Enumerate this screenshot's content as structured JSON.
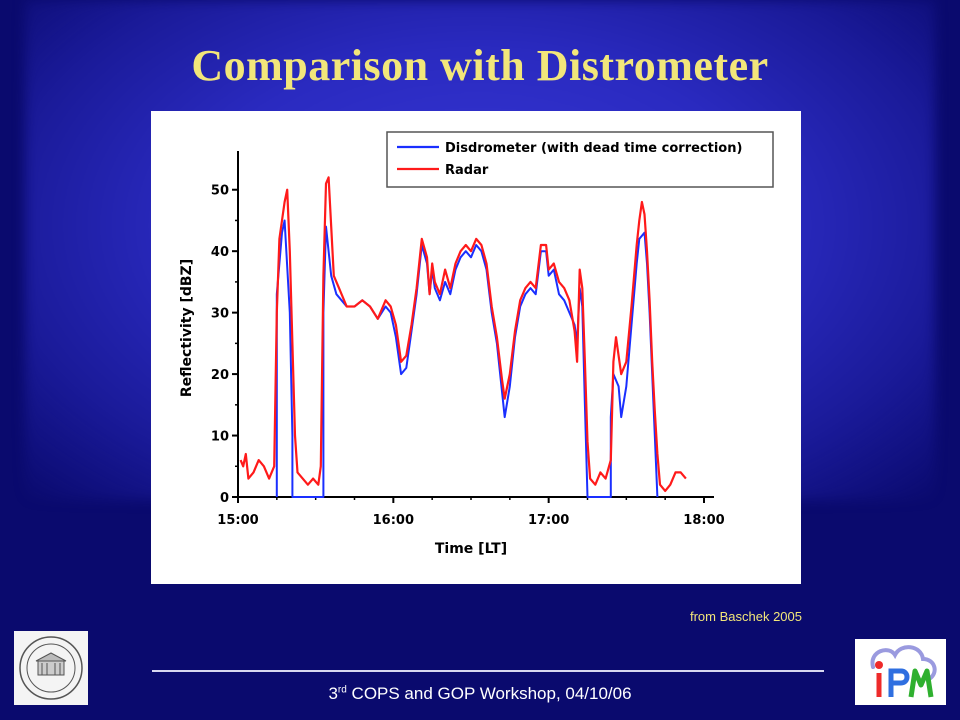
{
  "slide": {
    "title": "Comparison with Distrometer",
    "source": "from Baschek 2005",
    "footer_sup": "rd",
    "footer_main": "3",
    "footer_rest": " COPS and GOP Workshop, 04/10/06"
  },
  "logos": {
    "left": "university-hohenheim-seal",
    "right": "ipm-logo"
  },
  "colors": {
    "background": "#0a0a6e",
    "title": "#f2e67a",
    "disdrometer": "#1a2fff",
    "radar": "#ff1a1a"
  },
  "chart_data": {
    "type": "line",
    "title": "",
    "xlabel": "Time [LT]",
    "ylabel": "Reflectivity [dBZ]",
    "xlim": [
      "15:00",
      "18:00"
    ],
    "ylim": [
      0,
      55
    ],
    "xticks": [
      "15:00",
      "16:00",
      "17:00",
      "18:00"
    ],
    "yticks": [
      0,
      10,
      20,
      30,
      40,
      50
    ],
    "grid": false,
    "legend_position": "top-right",
    "series": [
      {
        "name": "Disdrometer (with dead time correction)",
        "color": "#1a2fff",
        "points": [
          [
            "15:15",
            0
          ],
          [
            "15:15",
            33
          ],
          [
            "15:17",
            43
          ],
          [
            "15:18",
            45
          ],
          [
            "15:20",
            30
          ],
          [
            "15:21",
            10
          ],
          [
            "15:21",
            0
          ],
          [
            "15:33",
            0
          ],
          [
            "15:33",
            30
          ],
          [
            "15:34",
            44
          ],
          [
            "15:36",
            36
          ],
          [
            "15:38",
            33
          ],
          [
            "15:42",
            31
          ],
          [
            "15:45",
            31
          ],
          [
            "15:48",
            32
          ],
          [
            "15:51",
            31
          ],
          [
            "15:54",
            29
          ],
          [
            "15:57",
            31
          ],
          [
            "15:59",
            30
          ],
          [
            "16:01",
            26
          ],
          [
            "16:03",
            20
          ],
          [
            "16:05",
            21
          ],
          [
            "16:07",
            27
          ],
          [
            "16:09",
            33
          ],
          [
            "16:11",
            41
          ],
          [
            "16:13",
            38
          ],
          [
            "16:14",
            33
          ],
          [
            "16:15",
            37
          ],
          [
            "16:16",
            34
          ],
          [
            "16:18",
            32
          ],
          [
            "16:20",
            35
          ],
          [
            "16:22",
            33
          ],
          [
            "16:24",
            37
          ],
          [
            "16:26",
            39
          ],
          [
            "16:28",
            40
          ],
          [
            "16:30",
            39
          ],
          [
            "16:32",
            41
          ],
          [
            "16:34",
            40
          ],
          [
            "16:36",
            37
          ],
          [
            "16:38",
            30
          ],
          [
            "16:40",
            25
          ],
          [
            "16:42",
            17
          ],
          [
            "16:43",
            13
          ],
          [
            "16:45",
            18
          ],
          [
            "16:47",
            26
          ],
          [
            "16:49",
            31
          ],
          [
            "16:51",
            33
          ],
          [
            "16:53",
            34
          ],
          [
            "16:55",
            33
          ],
          [
            "16:57",
            40
          ],
          [
            "16:59",
            40
          ],
          [
            "17:00",
            36
          ],
          [
            "17:02",
            37
          ],
          [
            "17:04",
            33
          ],
          [
            "17:06",
            32
          ],
          [
            "17:08",
            30
          ],
          [
            "17:10",
            28
          ],
          [
            "17:11",
            25
          ],
          [
            "17:12",
            34
          ],
          [
            "17:13",
            31
          ],
          [
            "17:14",
            15
          ],
          [
            "17:15",
            0
          ],
          [
            "17:24",
            0
          ],
          [
            "17:24",
            13
          ],
          [
            "17:25",
            20
          ],
          [
            "17:27",
            18
          ],
          [
            "17:28",
            13
          ],
          [
            "17:30",
            18
          ],
          [
            "17:32",
            28
          ],
          [
            "17:34",
            38
          ],
          [
            "17:35",
            42
          ],
          [
            "17:37",
            43
          ],
          [
            "17:38",
            38
          ],
          [
            "17:39",
            30
          ],
          [
            "17:40",
            20
          ],
          [
            "17:41",
            10
          ],
          [
            "17:42",
            0
          ]
        ]
      },
      {
        "name": "Radar",
        "color": "#ff1a1a",
        "points": [
          [
            "15:01",
            6
          ],
          [
            "15:02",
            5
          ],
          [
            "15:03",
            7
          ],
          [
            "15:04",
            3
          ],
          [
            "15:06",
            4
          ],
          [
            "15:08",
            6
          ],
          [
            "15:10",
            5
          ],
          [
            "15:12",
            3
          ],
          [
            "15:14",
            5
          ],
          [
            "15:15",
            30
          ],
          [
            "15:16",
            42
          ],
          [
            "15:18",
            48
          ],
          [
            "15:19",
            50
          ],
          [
            "15:20",
            40
          ],
          [
            "15:21",
            25
          ],
          [
            "15:22",
            10
          ],
          [
            "15:23",
            4
          ],
          [
            "15:25",
            3
          ],
          [
            "15:27",
            2
          ],
          [
            "15:29",
            3
          ],
          [
            "15:31",
            2
          ],
          [
            "15:32",
            5
          ],
          [
            "15:33",
            36
          ],
          [
            "15:34",
            51
          ],
          [
            "15:35",
            52
          ],
          [
            "15:36",
            44
          ],
          [
            "15:37",
            36
          ],
          [
            "15:39",
            34
          ],
          [
            "15:42",
            31
          ],
          [
            "15:45",
            31
          ],
          [
            "15:48",
            32
          ],
          [
            "15:51",
            31
          ],
          [
            "15:54",
            29
          ],
          [
            "15:57",
            32
          ],
          [
            "15:59",
            31
          ],
          [
            "16:01",
            28
          ],
          [
            "16:03",
            22
          ],
          [
            "16:05",
            23
          ],
          [
            "16:07",
            28
          ],
          [
            "16:09",
            34
          ],
          [
            "16:11",
            42
          ],
          [
            "16:13",
            39
          ],
          [
            "16:14",
            33
          ],
          [
            "16:15",
            38
          ],
          [
            "16:16",
            35
          ],
          [
            "16:18",
            33
          ],
          [
            "16:20",
            37
          ],
          [
            "16:22",
            34
          ],
          [
            "16:24",
            38
          ],
          [
            "16:26",
            40
          ],
          [
            "16:28",
            41
          ],
          [
            "16:30",
            40
          ],
          [
            "16:32",
            42
          ],
          [
            "16:34",
            41
          ],
          [
            "16:36",
            38
          ],
          [
            "16:38",
            31
          ],
          [
            "16:40",
            26
          ],
          [
            "16:42",
            19
          ],
          [
            "16:43",
            16
          ],
          [
            "16:45",
            20
          ],
          [
            "16:47",
            27
          ],
          [
            "16:49",
            32
          ],
          [
            "16:51",
            34
          ],
          [
            "16:53",
            35
          ],
          [
            "16:55",
            34
          ],
          [
            "16:57",
            41
          ],
          [
            "16:59",
            41
          ],
          [
            "17:00",
            37
          ],
          [
            "17:02",
            38
          ],
          [
            "17:04",
            35
          ],
          [
            "17:06",
            34
          ],
          [
            "17:08",
            32
          ],
          [
            "17:10",
            27
          ],
          [
            "17:11",
            22
          ],
          [
            "17:12",
            37
          ],
          [
            "17:13",
            34
          ],
          [
            "17:14",
            22
          ],
          [
            "17:15",
            9
          ],
          [
            "17:16",
            3
          ],
          [
            "17:18",
            2
          ],
          [
            "17:20",
            4
          ],
          [
            "17:22",
            3
          ],
          [
            "17:24",
            6
          ],
          [
            "17:25",
            22
          ],
          [
            "17:26",
            26
          ],
          [
            "17:28",
            20
          ],
          [
            "17:30",
            22
          ],
          [
            "17:32",
            31
          ],
          [
            "17:34",
            41
          ],
          [
            "17:35",
            45
          ],
          [
            "17:36",
            48
          ],
          [
            "17:37",
            46
          ],
          [
            "17:38",
            40
          ],
          [
            "17:39",
            32
          ],
          [
            "17:40",
            22
          ],
          [
            "17:41",
            14
          ],
          [
            "17:42",
            7
          ],
          [
            "17:43",
            2
          ],
          [
            "17:45",
            1
          ],
          [
            "17:47",
            2
          ],
          [
            "17:49",
            4
          ],
          [
            "17:51",
            4
          ],
          [
            "17:53",
            3
          ]
        ]
      }
    ]
  }
}
